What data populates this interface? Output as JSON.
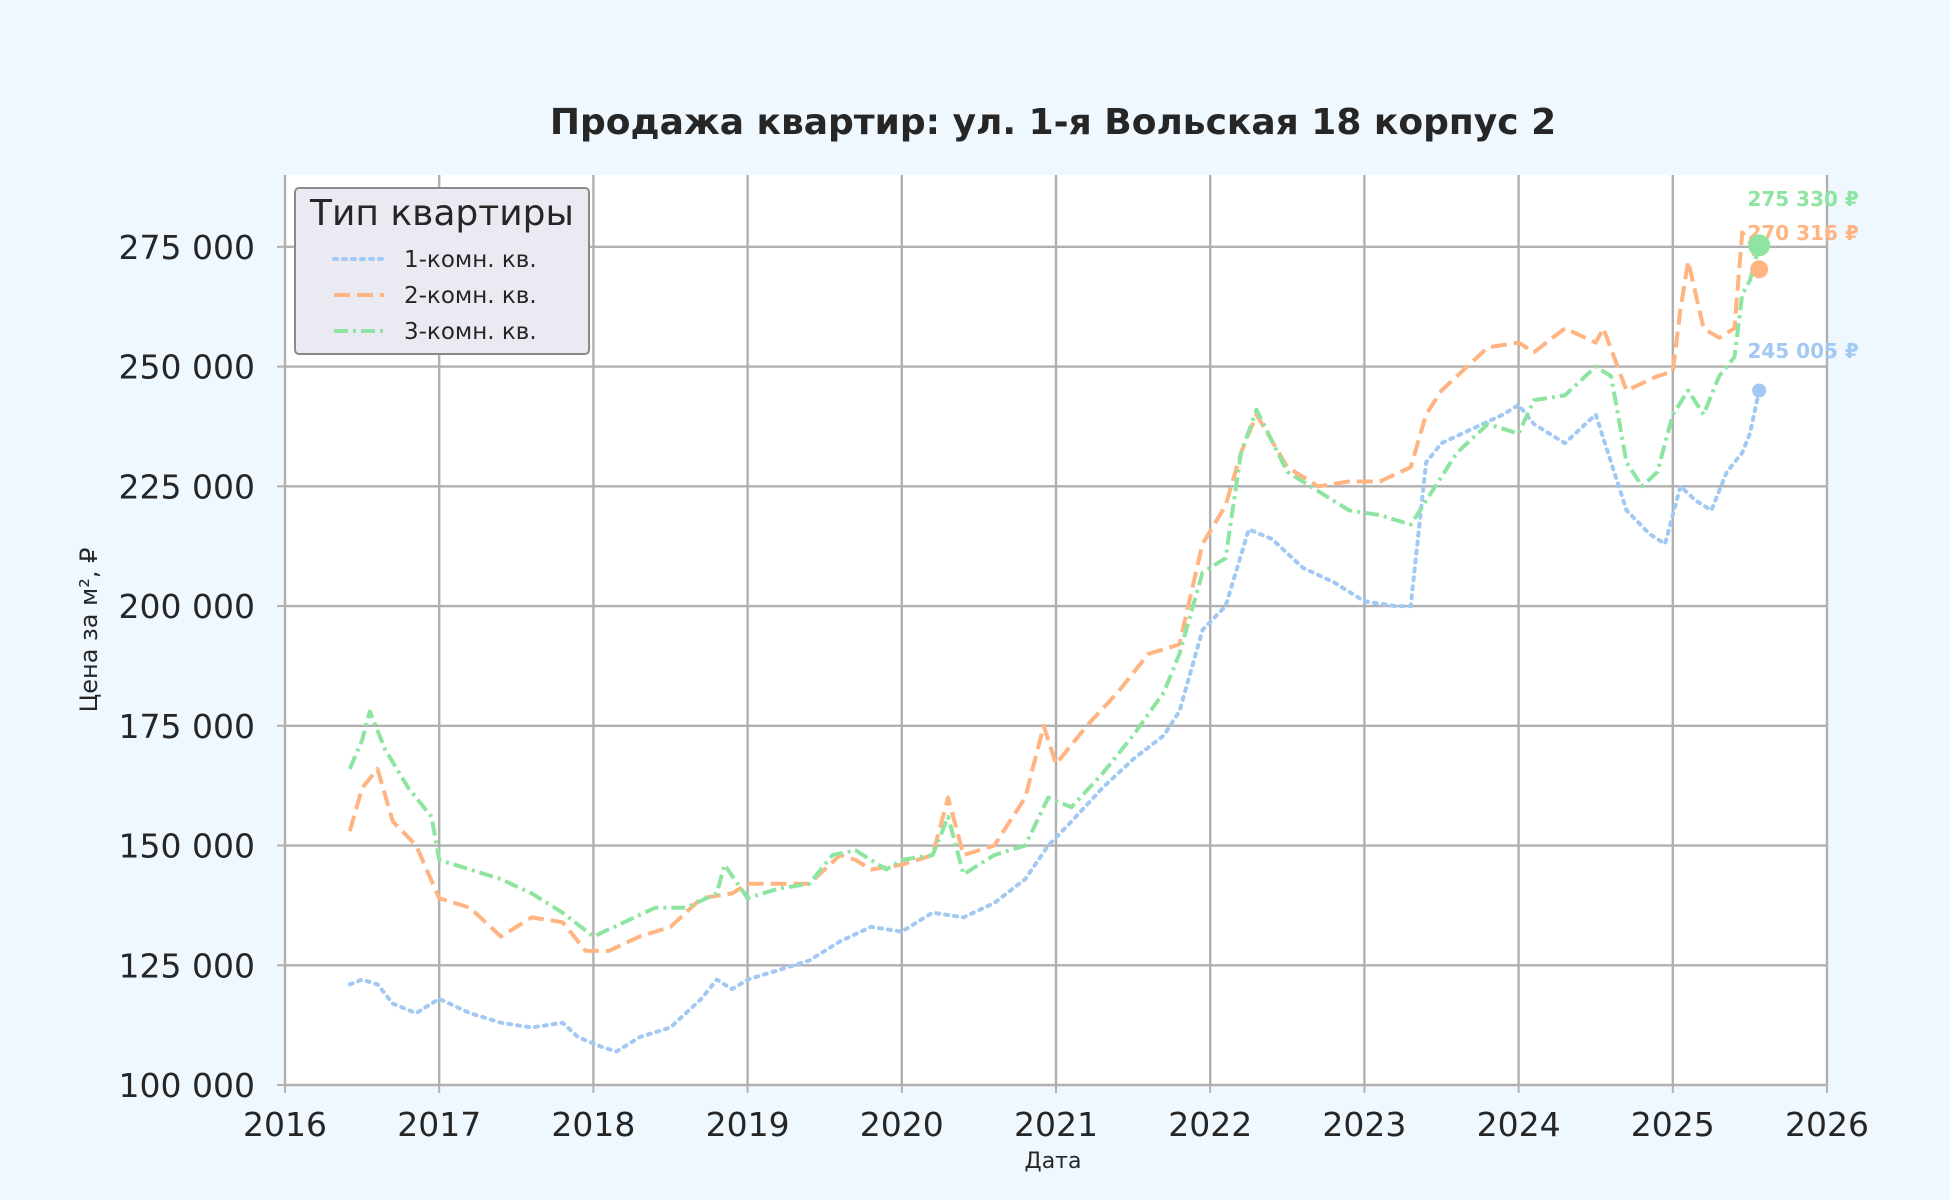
{
  "chart_data": {
    "type": "line",
    "title": "Продажа квартир: ул. 1-я Вольская 18 корпус 2",
    "xlabel": "Дата",
    "ylabel": "Цена за м², ₽",
    "xlim": [
      2016,
      2026
    ],
    "ylim": [
      100000,
      290000
    ],
    "x_ticks": [
      2016,
      2017,
      2018,
      2019,
      2020,
      2021,
      2022,
      2023,
      2024,
      2025,
      2026
    ],
    "x_tick_labels": [
      "2016",
      "2017",
      "2018",
      "2019",
      "2020",
      "2021",
      "2022",
      "2023",
      "2024",
      "2025",
      "2026"
    ],
    "y_ticks": [
      100000,
      125000,
      150000,
      175000,
      200000,
      225000,
      250000,
      275000
    ],
    "y_tick_labels": [
      "100 000",
      "125 000",
      "150 000",
      "175 000",
      "200 000",
      "225 000",
      "250 000",
      "275 000"
    ],
    "grid": true,
    "legend": {
      "title": "Тип квартиры",
      "position": "top-left"
    },
    "series": [
      {
        "name": "1-комн. кв.",
        "color": "#a1c9f4",
        "style": "dotted",
        "x": [
          2016.42,
          2016.5,
          2016.6,
          2016.7,
          2016.85,
          2017.0,
          2017.2,
          2017.4,
          2017.6,
          2017.8,
          2017.9,
          2018.05,
          2018.15,
          2018.3,
          2018.5,
          2018.7,
          2018.8,
          2018.9,
          2019.0,
          2019.2,
          2019.4,
          2019.6,
          2019.8,
          2020.0,
          2020.2,
          2020.4,
          2020.6,
          2020.8,
          2020.95,
          2021.1,
          2021.3,
          2021.5,
          2021.7,
          2021.8,
          2021.95,
          2022.1,
          2022.25,
          2022.4,
          2022.6,
          2022.8,
          2023.0,
          2023.2,
          2023.3,
          2023.4,
          2023.5,
          2023.7,
          2023.9,
          2024.0,
          2024.1,
          2024.3,
          2024.5,
          2024.7,
          2024.85,
          2024.95,
          2025.05,
          2025.15,
          2025.25,
          2025.35,
          2025.45,
          2025.5,
          2025.56
        ],
        "y": [
          121000,
          122000,
          121000,
          117000,
          115000,
          118000,
          115000,
          113000,
          112000,
          113000,
          110000,
          108000,
          107000,
          110000,
          112000,
          118000,
          122000,
          120000,
          122000,
          124000,
          126000,
          130000,
          133000,
          132000,
          136000,
          135000,
          138000,
          143000,
          150000,
          155000,
          162000,
          168000,
          173000,
          178000,
          195000,
          200000,
          216000,
          214000,
          208000,
          205000,
          201000,
          200000,
          200000,
          230000,
          234000,
          237000,
          240000,
          242000,
          238000,
          234000,
          240000,
          220000,
          215000,
          213000,
          225000,
          222000,
          220000,
          228000,
          232000,
          236000,
          245005
        ]
      },
      {
        "name": "2-комн. кв.",
        "color": "#ffb482",
        "style": "dashed",
        "x": [
          2016.42,
          2016.5,
          2016.6,
          2016.7,
          2016.85,
          2017.0,
          2017.2,
          2017.4,
          2017.6,
          2017.8,
          2017.95,
          2018.1,
          2018.3,
          2018.5,
          2018.7,
          2018.9,
          2019.0,
          2019.2,
          2019.4,
          2019.6,
          2019.7,
          2019.8,
          2020.0,
          2020.2,
          2020.3,
          2020.4,
          2020.6,
          2020.8,
          2020.92,
          2021.0,
          2021.2,
          2021.4,
          2021.6,
          2021.8,
          2021.95,
          2022.1,
          2022.2,
          2022.3,
          2022.5,
          2022.7,
          2022.9,
          2023.1,
          2023.3,
          2023.4,
          2023.5,
          2023.6,
          2023.8,
          2024.0,
          2024.1,
          2024.3,
          2024.5,
          2024.55,
          2024.7,
          2024.9,
          2025.0,
          2025.05,
          2025.1,
          2025.2,
          2025.3,
          2025.4,
          2025.45,
          2025.5,
          2025.56
        ],
        "y": [
          153000,
          162000,
          166000,
          155000,
          150000,
          139000,
          137000,
          131000,
          135000,
          134000,
          128000,
          128000,
          131000,
          133000,
          139000,
          140000,
          142000,
          142000,
          142000,
          148000,
          147000,
          145000,
          146000,
          148000,
          160000,
          148000,
          150000,
          160000,
          175000,
          167000,
          175000,
          182000,
          190000,
          192000,
          213000,
          221000,
          232000,
          240000,
          229000,
          225000,
          226000,
          226000,
          229000,
          240000,
          245000,
          248000,
          254000,
          255000,
          253000,
          258000,
          255000,
          258000,
          245000,
          248000,
          249000,
          262000,
          272000,
          258000,
          256000,
          258000,
          278000,
          276000,
          270316
        ]
      },
      {
        "name": "3-комн. кв.",
        "color": "#8de5a1",
        "style": "dashdot",
        "x": [
          2016.42,
          2016.5,
          2016.55,
          2016.65,
          2016.8,
          2016.95,
          2017.0,
          2017.2,
          2017.4,
          2017.6,
          2017.8,
          2018.0,
          2018.2,
          2018.4,
          2018.6,
          2018.8,
          2018.85,
          2019.0,
          2019.2,
          2019.4,
          2019.55,
          2019.7,
          2019.9,
          2020.0,
          2020.2,
          2020.3,
          2020.4,
          2020.6,
          2020.8,
          2020.95,
          2021.1,
          2021.3,
          2021.5,
          2021.7,
          2021.8,
          2021.95,
          2022.1,
          2022.2,
          2022.3,
          2022.5,
          2022.7,
          2022.9,
          2023.1,
          2023.3,
          2023.4,
          2023.6,
          2023.8,
          2024.0,
          2024.1,
          2024.3,
          2024.5,
          2024.6,
          2024.7,
          2024.8,
          2024.9,
          2025.0,
          2025.1,
          2025.2,
          2025.3,
          2025.4,
          2025.45,
          2025.5,
          2025.56
        ],
        "y": [
          166000,
          172000,
          178000,
          170000,
          162000,
          156000,
          147000,
          145000,
          143000,
          140000,
          136000,
          131000,
          134000,
          137000,
          137000,
          140000,
          146000,
          139000,
          141000,
          142000,
          148000,
          149000,
          145000,
          147000,
          148000,
          156000,
          144000,
          148000,
          150000,
          160000,
          158000,
          165000,
          173000,
          182000,
          190000,
          207000,
          210000,
          232000,
          241000,
          228000,
          224000,
          220000,
          219000,
          217000,
          222000,
          232000,
          238000,
          236000,
          243000,
          244000,
          250000,
          248000,
          230000,
          225000,
          228000,
          240000,
          245000,
          240000,
          248000,
          252000,
          265000,
          268000,
          275330
        ]
      }
    ],
    "end_labels": [
      {
        "series": "1-комн. кв.",
        "text": "245 005 ₽",
        "value": 245005,
        "color": "#a1c9f4"
      },
      {
        "series": "2-комн. кв.",
        "text": "270 316 ₽",
        "value": 270316,
        "color": "#ffb482"
      },
      {
        "series": "3-комн. кв.",
        "text": "275 330 ₽",
        "value": 275330,
        "color": "#8de5a1"
      }
    ]
  }
}
